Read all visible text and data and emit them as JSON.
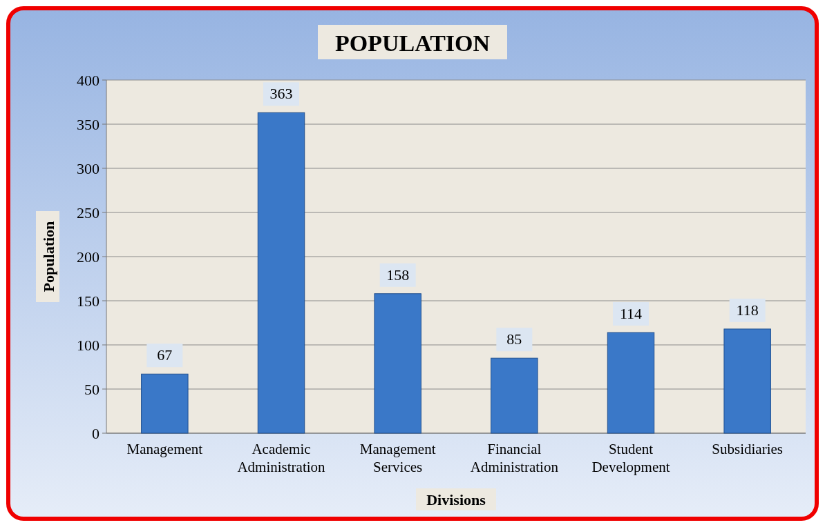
{
  "chart_data": {
    "type": "bar",
    "title": "POPULATION",
    "xlabel": "Divisions",
    "ylabel": "Population",
    "categories": [
      "Management",
      "Academic Administration",
      "Management Services",
      "Financial Administration",
      "Student Development",
      "Subsidiaries"
    ],
    "values": [
      67,
      363,
      158,
      85,
      114,
      118
    ],
    "color": "#3a78c8",
    "ylim": [
      0,
      400
    ],
    "yticks": [
      0,
      50,
      100,
      150,
      200,
      250,
      300,
      350,
      400
    ],
    "grid": "y",
    "data_labels": true
  }
}
